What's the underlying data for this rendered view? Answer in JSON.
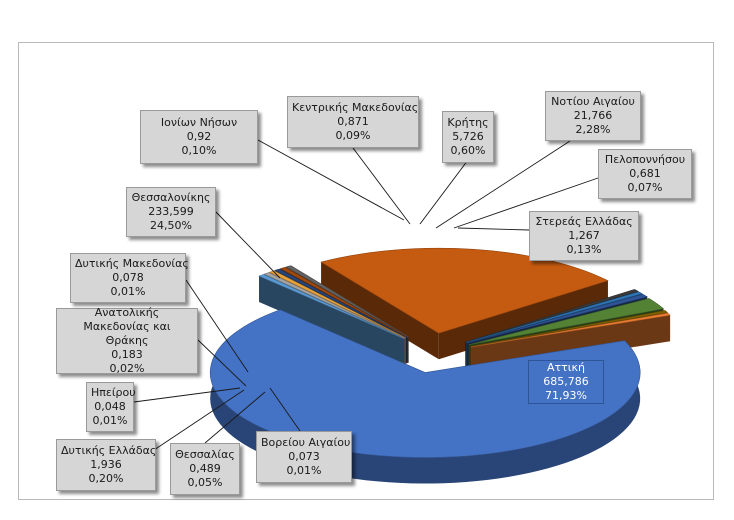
{
  "chart_data": {
    "type": "pie",
    "style": "3d-exploded",
    "title": "",
    "slices": [
      {
        "name": "Αττική",
        "value": "685,786",
        "percent": "71,93%",
        "pct": 71.93,
        "color": "#4472c4"
      },
      {
        "name": "Βορείου Αιγαίου",
        "value": "0,073",
        "percent": "0,01%",
        "pct": 0.01,
        "color": "#5b9bd5"
      },
      {
        "name": "Θεσσαλίας",
        "value": "0,489",
        "percent": "0,05%",
        "pct": 0.05,
        "color": "#a5a5a5"
      },
      {
        "name": "Δυτικής Ελλάδας",
        "value": "1,936",
        "percent": "0,20%",
        "pct": 0.2,
        "color": "#e8a23a"
      },
      {
        "name": "Ηπείρου",
        "value": "0,048",
        "percent": "0,01%",
        "pct": 0.01,
        "color": "#264478"
      },
      {
        "name": "Ανατολικής Μακεδονίας και Θράκης",
        "value": "0,183",
        "percent": "0,02%",
        "pct": 0.02,
        "color": "#9e480e"
      },
      {
        "name": "Δυτικής Μακεδονίας",
        "value": "0,078",
        "percent": "0,01%",
        "pct": 0.01,
        "color": "#636363"
      },
      {
        "name": "Θεσσαλονίκης",
        "value": "233,599",
        "percent": "24,50%",
        "pct": 24.5,
        "color": "#c55a11"
      },
      {
        "name": "Ιονίων Νήσων",
        "value": "0,92",
        "percent": "0,10%",
        "pct": 0.1,
        "color": "#3a3a3a"
      },
      {
        "name": "Κεντρικής Μακεδονίας",
        "value": "0,871",
        "percent": "0,09%",
        "pct": 0.09,
        "color": "#2e75b6"
      },
      {
        "name": "Κρήτης",
        "value": "5,726",
        "percent": "0,60%",
        "pct": 0.6,
        "color": "#2f5597"
      },
      {
        "name": "Νοτίου Αιγαίου",
        "value": "21,766",
        "percent": "2,28%",
        "pct": 2.28,
        "color": "#548235"
      },
      {
        "name": "Πελοποννήσου",
        "value": "0,681",
        "percent": "0,07%",
        "pct": 0.07,
        "color": "#7f6000"
      },
      {
        "name": "Στερεάς Ελλάδας",
        "value": "1,267",
        "percent": "0,13%",
        "pct": 0.13,
        "color": "#ed7d31"
      }
    ]
  }
}
